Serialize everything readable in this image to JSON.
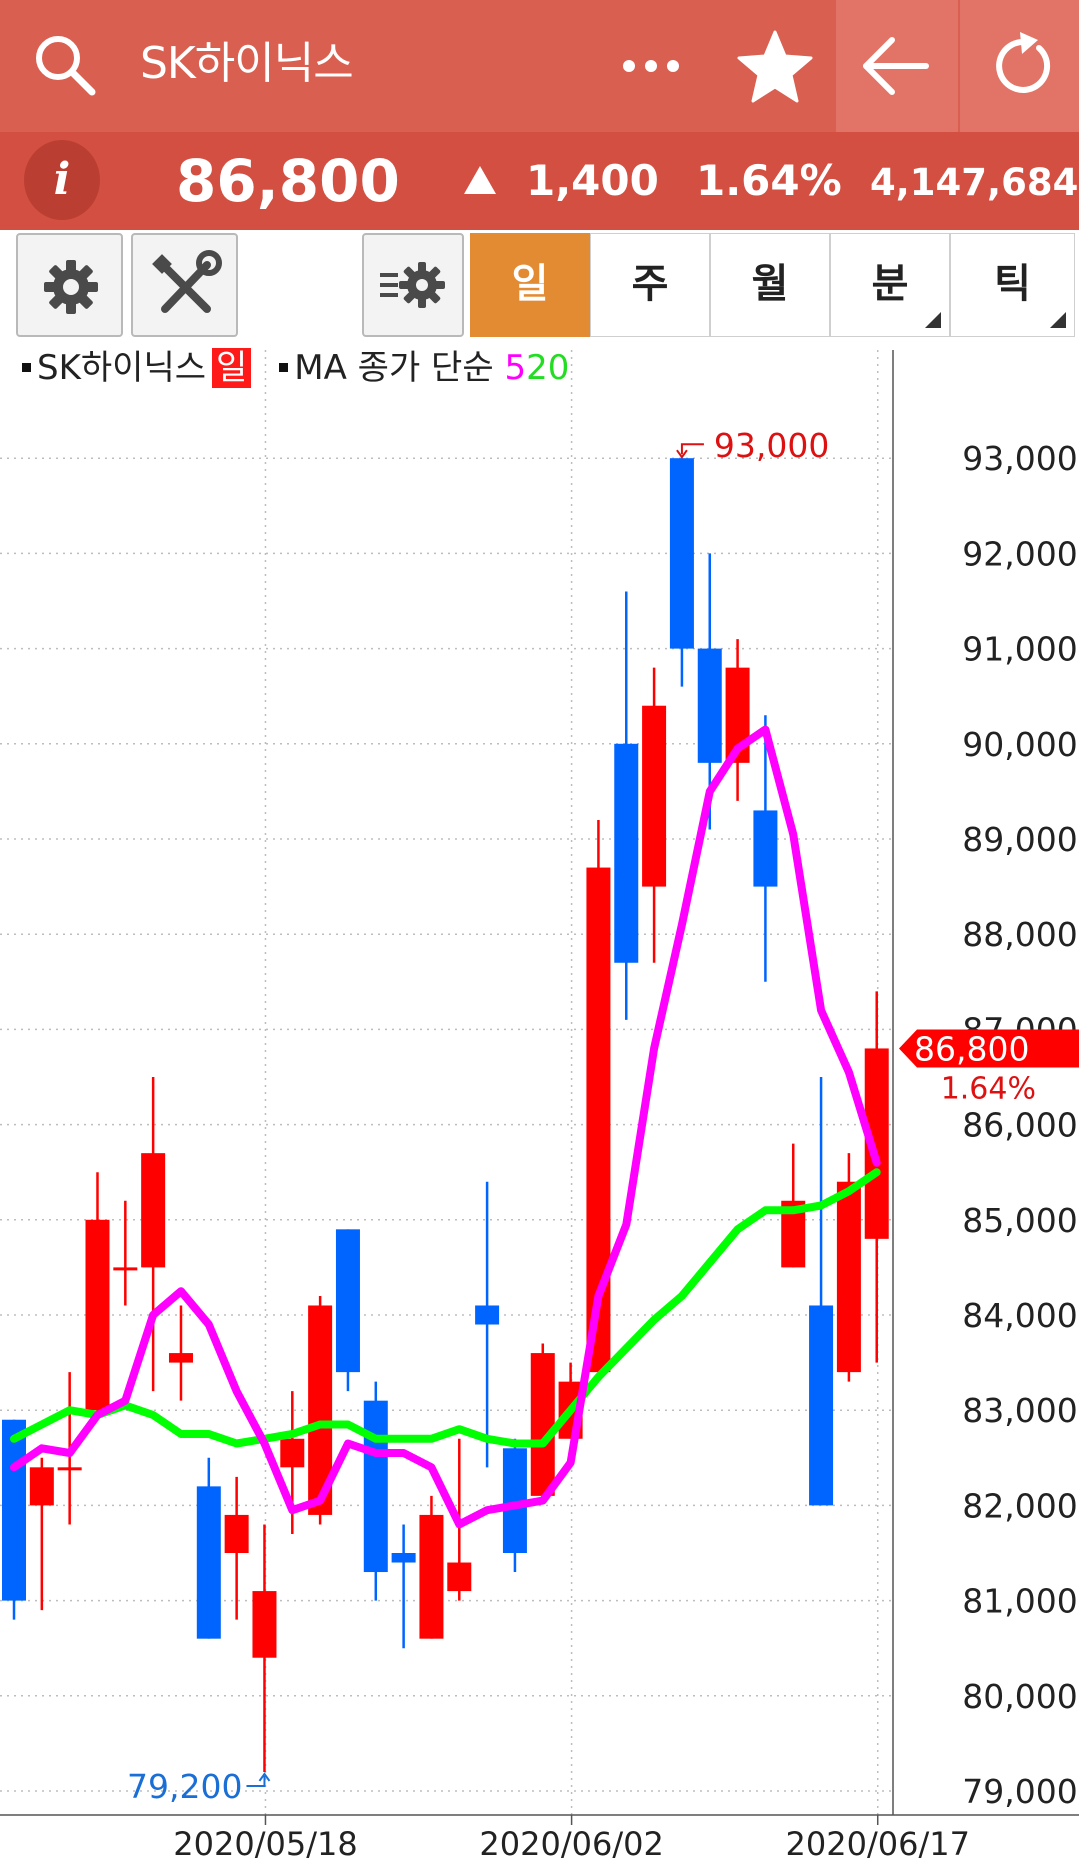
{
  "header": {
    "title": "SK하이닉스",
    "icons": [
      "search-icon",
      "more-icon",
      "star-icon",
      "back-arrow-icon",
      "refresh-icon"
    ],
    "colors": {
      "bar": "#d95f50",
      "icon_cells": "#e27467"
    }
  },
  "quote": {
    "price": "86,800",
    "change_arrow": "▲",
    "change": "1,400",
    "change_pct": "1.64%",
    "volume": "4,147,684",
    "info_label": "i"
  },
  "toolbar": {
    "icons": [
      "gear-icon",
      "tools-icon",
      "indicator-settings-icon"
    ],
    "periods": [
      {
        "label": "일",
        "active": true
      },
      {
        "label": "주",
        "active": false
      },
      {
        "label": "월",
        "active": false
      },
      {
        "label": "분",
        "active": false,
        "has_menu": true
      },
      {
        "label": "틱",
        "active": false,
        "has_menu": true
      }
    ],
    "active_color": "#e38b32"
  },
  "legend": {
    "series_name": "SK하이닉스",
    "period_badge": "일",
    "ma_label": "MA 종가 단순",
    "ma_fast": "5",
    "ma_slow": "20"
  },
  "chart_data": {
    "type": "candlestick",
    "up_color": "#ff0000",
    "down_color": "#0064ff",
    "ma5_color": "#ff00ff",
    "ma20_color": "#00ff00",
    "ylim": [
      78700,
      94000
    ],
    "y_ticks": [
      "93,000",
      "92,000",
      "91,000",
      "90,000",
      "89,000",
      "88,000",
      "87,000",
      "86,000",
      "85,000",
      "84,000",
      "83,000",
      "82,000",
      "81,000",
      "80,000",
      "79,000"
    ],
    "x_tick_labels": [
      "2020/05/18",
      "2020/06/02",
      "2020/06/17"
    ],
    "x_tick_index": [
      9,
      20,
      31
    ],
    "grid": true,
    "candles": [
      {
        "o": 82900,
        "h": 82900,
        "l": 80800,
        "c": 81000
      },
      {
        "o": 82000,
        "h": 82500,
        "l": 80900,
        "c": 82400
      },
      {
        "o": 82400,
        "h": 83400,
        "l": 81800,
        "c": 82400
      },
      {
        "o": 83000,
        "h": 85500,
        "l": 82900,
        "c": 85000
      },
      {
        "o": 84500,
        "h": 85200,
        "l": 84100,
        "c": 84500
      },
      {
        "o": 84500,
        "h": 86500,
        "l": 83200,
        "c": 85700
      },
      {
        "o": 83500,
        "h": 84100,
        "l": 83100,
        "c": 83600
      },
      {
        "o": 82200,
        "h": 82500,
        "l": 80600,
        "c": 80600
      },
      {
        "o": 81500,
        "h": 82300,
        "l": 80800,
        "c": 81900
      },
      {
        "o": 80400,
        "h": 81800,
        "l": 79200,
        "c": 81100
      },
      {
        "o": 82400,
        "h": 83200,
        "l": 81700,
        "c": 82700
      },
      {
        "o": 81900,
        "h": 84200,
        "l": 81800,
        "c": 84100
      },
      {
        "o": 84900,
        "h": 84900,
        "l": 83200,
        "c": 83400
      },
      {
        "o": 83100,
        "h": 83300,
        "l": 81000,
        "c": 81300
      },
      {
        "o": 81500,
        "h": 81800,
        "l": 80500,
        "c": 81400
      },
      {
        "o": 80600,
        "h": 82100,
        "l": 80600,
        "c": 81900
      },
      {
        "o": 81100,
        "h": 82700,
        "l": 81000,
        "c": 81400
      },
      {
        "o": 84100,
        "h": 85400,
        "l": 82400,
        "c": 83900
      },
      {
        "o": 82600,
        "h": 82700,
        "l": 81300,
        "c": 81500
      },
      {
        "o": 82100,
        "h": 83700,
        "l": 82100,
        "c": 83600
      },
      {
        "o": 82700,
        "h": 83500,
        "l": 82700,
        "c": 83300
      },
      {
        "o": 83400,
        "h": 89200,
        "l": 83400,
        "c": 88700
      },
      {
        "o": 90000,
        "h": 91600,
        "l": 87100,
        "c": 87700
      },
      {
        "o": 88500,
        "h": 90800,
        "l": 87700,
        "c": 90400
      },
      {
        "o": 93000,
        "h": 93000,
        "l": 90600,
        "c": 91000
      },
      {
        "o": 91000,
        "h": 92000,
        "l": 89100,
        "c": 89800
      },
      {
        "o": 89800,
        "h": 91100,
        "l": 89400,
        "c": 90800
      },
      {
        "o": 89300,
        "h": 90300,
        "l": 87500,
        "c": 88500
      },
      {
        "o": 84500,
        "h": 85800,
        "l": 84500,
        "c": 85200
      },
      {
        "o": 84100,
        "h": 86500,
        "l": 82000,
        "c": 82000
      },
      {
        "o": 83400,
        "h": 85700,
        "l": 83300,
        "c": 85400
      },
      {
        "o": 84800,
        "h": 87400,
        "l": 83500,
        "c": 86800
      }
    ],
    "ma5": [
      82400,
      82600,
      82550,
      82950,
      83100,
      84000,
      84250,
      83900,
      83200,
      82650,
      81950,
      82050,
      82650,
      82550,
      82550,
      82400,
      81800,
      81950,
      82000,
      82050,
      82450,
      84200,
      84950,
      86800,
      88100,
      89500,
      89950,
      90150,
      89050,
      87200,
      86550,
      85600
    ],
    "ma20": [
      82700,
      82850,
      83000,
      82950,
      83050,
      82950,
      82750,
      82750,
      82650,
      82700,
      82750,
      82850,
      82850,
      82700,
      82700,
      82700,
      82800,
      82700,
      82650,
      82650,
      83000,
      83350,
      83650,
      83950,
      84200,
      84550,
      84900,
      85100,
      85100,
      85150,
      85300,
      85500
    ],
    "high_marker": "93,000",
    "low_marker": "79,200",
    "current_label": "86,800",
    "current_pct": "1.64%"
  }
}
